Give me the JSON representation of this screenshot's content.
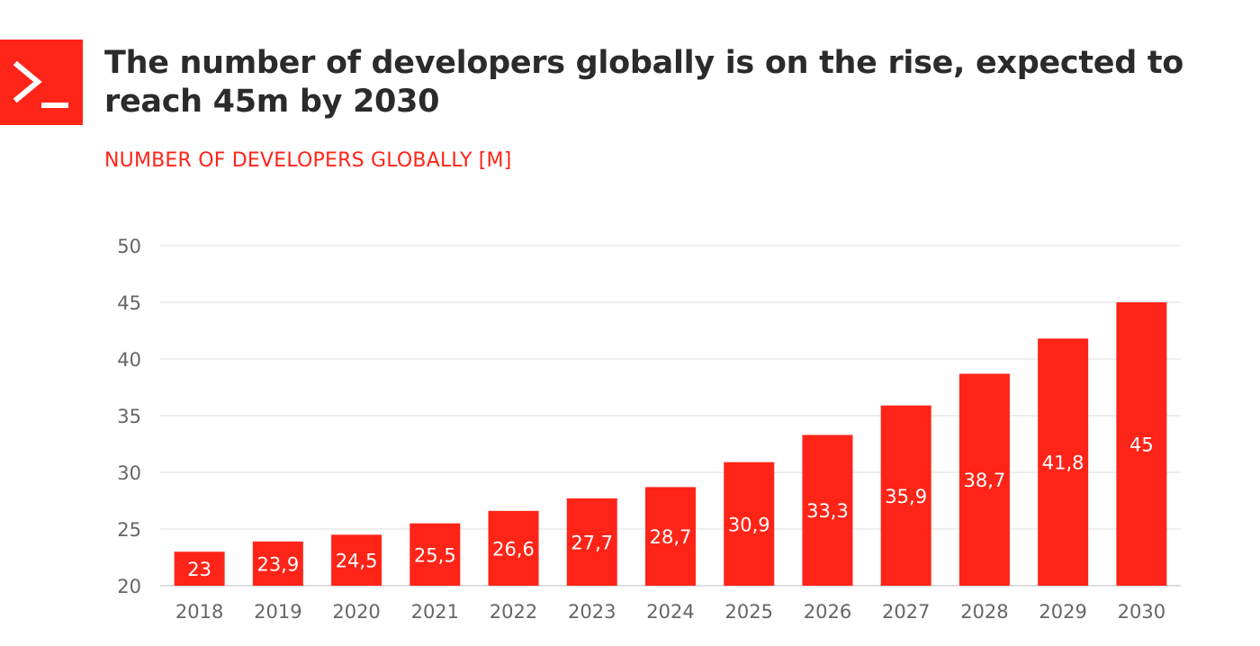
{
  "brand": {
    "logo_icon": "terminal-prompt-icon",
    "accent_color": "#ff2418"
  },
  "header": {
    "title": "The number of developers globally is on the rise, expected to reach 45m by 2030",
    "subtitle": "NUMBER OF DEVELOPERS GLOBALLY [M]"
  },
  "chart_data": {
    "type": "bar",
    "categories": [
      "2018",
      "2019",
      "2020",
      "2021",
      "2022",
      "2023",
      "2024",
      "2025",
      "2026",
      "2027",
      "2028",
      "2029",
      "2030"
    ],
    "values": [
      23,
      23.9,
      24.5,
      25.5,
      26.6,
      27.7,
      28.7,
      30.9,
      33.3,
      35.9,
      38.7,
      41.8,
      45
    ],
    "data_labels": [
      "23",
      "23,9",
      "24,5",
      "25,5",
      "26,6",
      "27,7",
      "28,7",
      "30,9",
      "33,3",
      "35,9",
      "38,7",
      "41,8",
      "45"
    ],
    "yticks": [
      20,
      25,
      30,
      35,
      40,
      45,
      50
    ],
    "ylim": [
      20,
      50
    ],
    "grid": true,
    "bar_color": "#ff2418",
    "title": "",
    "xlabel": "",
    "ylabel": ""
  }
}
